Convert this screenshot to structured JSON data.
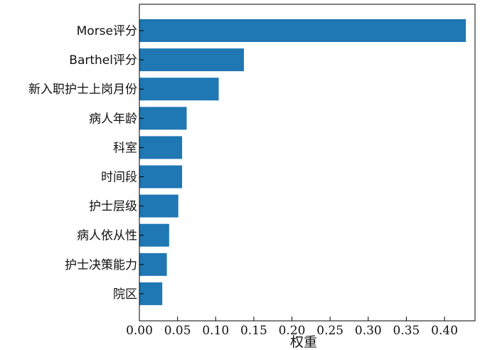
{
  "chart_data": {
    "type": "bar",
    "orientation": "horizontal",
    "categories": [
      "Morse评分",
      "Barthel评分",
      "新入职护士上岗月份",
      "病人年龄",
      "科室",
      "时间段",
      "护士层级",
      "病人依从性",
      "护士决策能力",
      "院区"
    ],
    "values": [
      0.428,
      0.137,
      0.104,
      0.062,
      0.056,
      0.056,
      0.051,
      0.039,
      0.036,
      0.03
    ],
    "title": "",
    "xlabel": "权重",
    "ylabel": "",
    "xlim": [
      0,
      0.44
    ],
    "xticks": [
      "0.00",
      "0.05",
      "0.10",
      "0.15",
      "0.20",
      "0.25",
      "0.30",
      "0.35",
      "0.40"
    ],
    "grid": false,
    "bar_color": "#1f77b4"
  }
}
